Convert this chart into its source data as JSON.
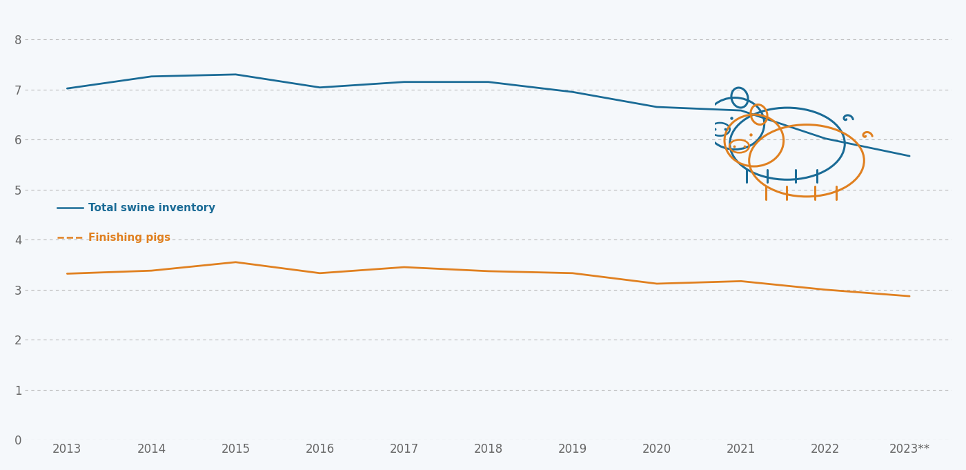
{
  "years": [
    2013,
    2014,
    2015,
    2016,
    2017,
    2018,
    2019,
    2020,
    2021,
    2022,
    2023
  ],
  "year_labels": [
    "2013",
    "2014",
    "2015",
    "2016",
    "2017",
    "2018",
    "2019",
    "2020",
    "2021",
    "2022",
    "2023**"
  ],
  "total_swine": [
    7.02,
    7.26,
    7.3,
    7.04,
    7.15,
    7.15,
    6.95,
    6.65,
    6.58,
    6.02,
    5.67
  ],
  "finishing_pigs": [
    3.32,
    3.38,
    3.55,
    3.33,
    3.45,
    3.37,
    3.33,
    3.12,
    3.17,
    3.0,
    2.87
  ],
  "total_swine_color": "#1a6b96",
  "finishing_pigs_color": "#e08020",
  "background_color": "#f5f8fb",
  "grid_color": "#bbbbbb",
  "ylim": [
    0,
    8.5
  ],
  "yticks": [
    0,
    1,
    2,
    3,
    4,
    5,
    6,
    7,
    8
  ],
  "legend_total_label": "Total swine inventory",
  "legend_finishing_label": "Finishing pigs",
  "tick_fontsize": 12,
  "line_width": 2.0
}
